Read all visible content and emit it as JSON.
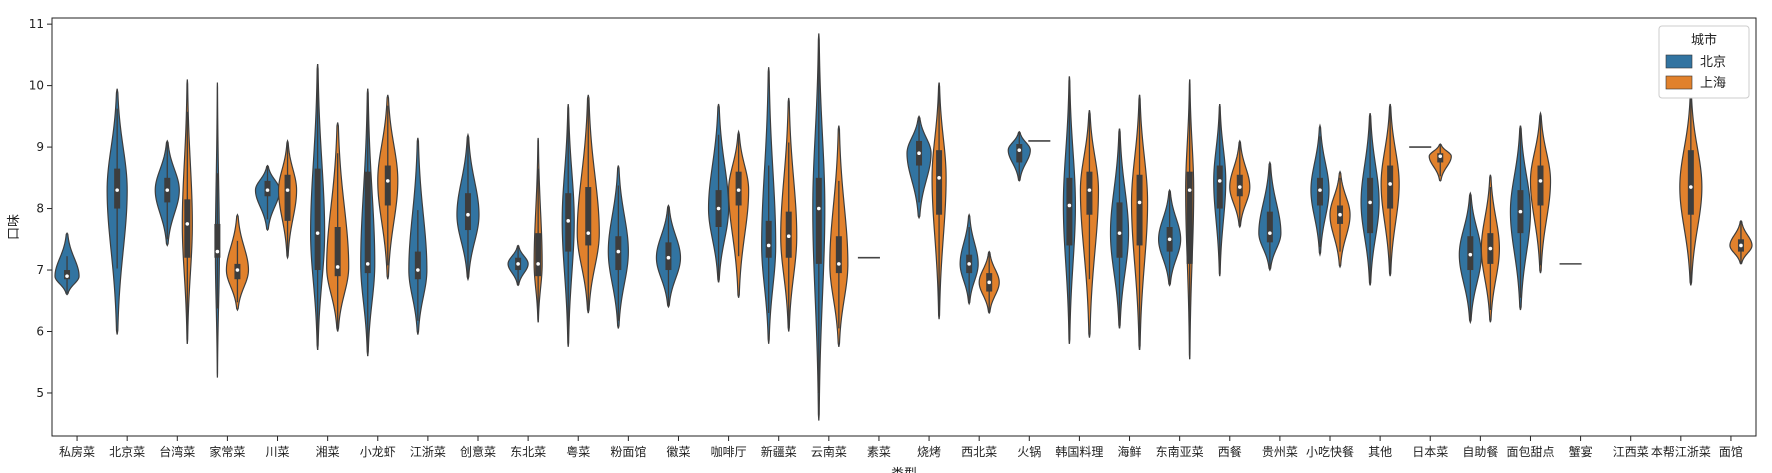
{
  "chart_data": {
    "type": "violin",
    "xlabel": "类型",
    "ylabel": "口味",
    "ylim": [
      4.3,
      11.1
    ],
    "yticks": [
      5,
      6,
      7,
      8,
      9,
      10,
      11
    ],
    "legend": {
      "title": "城市",
      "placement": "top-right",
      "entries": [
        "北京",
        "上海"
      ]
    },
    "colors": {
      "北京": "#3274a1",
      "上海": "#e1812c"
    },
    "categories": [
      "私房菜",
      "北京菜",
      "台湾菜",
      "家常菜",
      "川菜",
      "湘菜",
      "小龙虾",
      "江浙菜",
      "创意菜",
      "东北菜",
      "粤菜",
      "粉面馆",
      "徽菜",
      "咖啡厅",
      "新疆菜",
      "云南菜",
      "素菜",
      "烧烤",
      "西北菜",
      "火锅",
      "韩国料理",
      "海鲜",
      "东南亚菜",
      "西餐",
      "贵州菜",
      "小吃快餐",
      "其他",
      "日本菜",
      "自助餐",
      "面包甜点",
      "蟹宴",
      "江西菜",
      "本帮江浙菜",
      "面馆"
    ],
    "series": [
      {
        "name": "北京",
        "violins": [
          {
            "category": "私房菜",
            "min": 6.6,
            "max": 7.6,
            "median": 6.9,
            "q1": 6.85,
            "q3": 7.0,
            "width": 0.6
          },
          {
            "category": "北京菜",
            "min": 5.95,
            "max": 9.95,
            "median": 8.3,
            "q1": 8.0,
            "q3": 8.65,
            "width": 0.5
          },
          {
            "category": "台湾菜",
            "min": 7.4,
            "max": 9.1,
            "median": 8.3,
            "q1": 8.1,
            "q3": 8.5,
            "width": 0.6
          },
          {
            "category": "家常菜",
            "min": 5.25,
            "max": 10.05,
            "median": 7.3,
            "q1": 7.2,
            "q3": 7.75,
            "width": 0.1
          },
          {
            "category": "川菜",
            "min": 7.65,
            "max": 8.7,
            "median": 8.3,
            "q1": 8.2,
            "q3": 8.45,
            "width": 0.6
          },
          {
            "category": "湘菜",
            "min": 5.7,
            "max": 10.35,
            "median": 7.6,
            "q1": 7.0,
            "q3": 8.65,
            "width": 0.35
          },
          {
            "category": "小龙虾",
            "min": 5.6,
            "max": 9.95,
            "median": 7.1,
            "q1": 6.95,
            "q3": 8.6,
            "width": 0.35
          },
          {
            "category": "江浙菜",
            "min": 5.95,
            "max": 9.15,
            "median": 7.0,
            "q1": 6.85,
            "q3": 7.3,
            "width": 0.45
          },
          {
            "category": "创意菜",
            "min": 6.85,
            "max": 9.2,
            "median": 7.9,
            "q1": 7.65,
            "q3": 8.25,
            "width": 0.55
          },
          {
            "category": "东北菜",
            "min": 6.75,
            "max": 7.4,
            "median": 7.1,
            "q1": 7.0,
            "q3": 7.2,
            "width": 0.5
          },
          {
            "category": "粤菜",
            "min": 5.75,
            "max": 9.7,
            "median": 7.8,
            "q1": 7.3,
            "q3": 8.25,
            "width": 0.3
          },
          {
            "category": "粉面馆",
            "min": 6.05,
            "max": 8.7,
            "median": 7.3,
            "q1": 7.0,
            "q3": 7.55,
            "width": 0.5
          },
          {
            "category": "徽菜",
            "min": 6.4,
            "max": 8.05,
            "median": 7.2,
            "q1": 7.0,
            "q3": 7.45,
            "width": 0.6
          },
          {
            "category": "咖啡厅",
            "min": 6.8,
            "max": 9.7,
            "median": 8.0,
            "q1": 7.7,
            "q3": 8.3,
            "width": 0.5
          },
          {
            "category": "新疆菜",
            "min": 5.8,
            "max": 10.3,
            "median": 7.4,
            "q1": 7.2,
            "q3": 7.8,
            "width": 0.35
          },
          {
            "category": "云南菜",
            "min": 4.55,
            "max": 10.85,
            "median": 8.0,
            "q1": 7.1,
            "q3": 8.5,
            "width": 0.3
          },
          {
            "category": "素菜",
            "flat": 7.2
          },
          {
            "category": "烧烤",
            "min": 7.85,
            "max": 9.5,
            "median": 8.9,
            "q1": 8.7,
            "q3": 9.1,
            "width": 0.6
          },
          {
            "category": "西北菜",
            "min": 6.45,
            "max": 7.9,
            "median": 7.1,
            "q1": 6.95,
            "q3": 7.25,
            "width": 0.45
          },
          {
            "category": "火锅",
            "min": 8.45,
            "max": 9.25,
            "median": 8.95,
            "q1": 8.75,
            "q3": 9.05,
            "width": 0.55
          },
          {
            "category": "韩国料理",
            "min": 5.8,
            "max": 10.15,
            "median": 8.05,
            "q1": 7.4,
            "q3": 8.5,
            "width": 0.3
          },
          {
            "category": "海鲜",
            "min": 6.05,
            "max": 9.3,
            "median": 7.6,
            "q1": 7.2,
            "q3": 8.1,
            "width": 0.45
          },
          {
            "category": "东南亚菜",
            "min": 6.75,
            "max": 8.3,
            "median": 7.5,
            "q1": 7.3,
            "q3": 7.7,
            "width": 0.55
          },
          {
            "category": "西餐",
            "min": 6.9,
            "max": 9.7,
            "median": 8.45,
            "q1": 8.0,
            "q3": 8.7,
            "width": 0.3
          },
          {
            "category": "贵州菜",
            "min": 7.0,
            "max": 8.75,
            "median": 7.6,
            "q1": 7.45,
            "q3": 7.95,
            "width": 0.55
          },
          {
            "category": "小吃快餐",
            "min": 7.25,
            "max": 9.35,
            "median": 8.3,
            "q1": 8.05,
            "q3": 8.5,
            "width": 0.45
          },
          {
            "category": "其他",
            "min": 6.75,
            "max": 9.55,
            "median": 8.1,
            "q1": 7.6,
            "q3": 8.5,
            "width": 0.45
          },
          {
            "category": "日本菜",
            "flat": 9.0
          },
          {
            "category": "自助餐",
            "min": 6.15,
            "max": 8.25,
            "median": 7.25,
            "q1": 7.0,
            "q3": 7.55,
            "width": 0.55
          },
          {
            "category": "面包甜点",
            "min": 6.35,
            "max": 9.35,
            "median": 7.95,
            "q1": 7.6,
            "q3": 8.3,
            "width": 0.5
          },
          {
            "category": "蟹宴",
            "flat": 7.1
          }
        ]
      },
      {
        "name": "上海",
        "violins": [
          {
            "category": "台湾菜",
            "min": 5.8,
            "max": 10.1,
            "median": 7.75,
            "q1": 7.2,
            "q3": 8.15,
            "width": 0.25
          },
          {
            "category": "家常菜",
            "min": 6.35,
            "max": 7.9,
            "median": 7.0,
            "q1": 6.85,
            "q3": 7.1,
            "width": 0.55
          },
          {
            "category": "川菜",
            "min": 7.2,
            "max": 9.1,
            "median": 8.3,
            "q1": 7.8,
            "q3": 8.55,
            "width": 0.45
          },
          {
            "category": "湘菜",
            "min": 6.0,
            "max": 9.4,
            "median": 7.05,
            "q1": 6.9,
            "q3": 7.7,
            "width": 0.55
          },
          {
            "category": "小龙虾",
            "min": 6.85,
            "max": 9.85,
            "median": 8.45,
            "q1": 8.05,
            "q3": 8.7,
            "width": 0.5
          },
          {
            "category": "东北菜",
            "min": 6.15,
            "max": 9.15,
            "median": 7.1,
            "q1": 6.9,
            "q3": 7.6,
            "width": 0.2
          },
          {
            "category": "粤菜",
            "min": 6.3,
            "max": 9.85,
            "median": 7.6,
            "q1": 7.4,
            "q3": 8.35,
            "width": 0.55
          },
          {
            "category": "咖啡厅",
            "min": 6.55,
            "max": 9.25,
            "median": 8.3,
            "q1": 8.05,
            "q3": 8.6,
            "width": 0.5
          },
          {
            "category": "新疆菜",
            "min": 6.0,
            "max": 9.8,
            "median": 7.55,
            "q1": 7.2,
            "q3": 7.95,
            "width": 0.4
          },
          {
            "category": "云南菜",
            "min": 5.75,
            "max": 9.35,
            "median": 7.1,
            "q1": 6.95,
            "q3": 7.55,
            "width": 0.45
          },
          {
            "category": "烧烤",
            "min": 6.2,
            "max": 10.05,
            "median": 8.5,
            "q1": 7.9,
            "q3": 8.95,
            "width": 0.35
          },
          {
            "category": "西北菜",
            "min": 6.3,
            "max": 7.3,
            "median": 6.8,
            "q1": 6.65,
            "q3": 6.95,
            "width": 0.5
          },
          {
            "category": "火锅",
            "flat": 9.1
          },
          {
            "category": "韩国料理",
            "min": 5.9,
            "max": 9.6,
            "median": 8.3,
            "q1": 7.9,
            "q3": 8.6,
            "width": 0.45
          },
          {
            "category": "海鲜",
            "min": 5.7,
            "max": 9.85,
            "median": 8.1,
            "q1": 7.4,
            "q3": 8.55,
            "width": 0.4
          },
          {
            "category": "东南亚菜",
            "min": 5.55,
            "max": 10.1,
            "median": 8.3,
            "q1": 7.1,
            "q3": 8.6,
            "width": 0.2
          },
          {
            "category": "西餐",
            "min": 7.7,
            "max": 9.1,
            "median": 8.35,
            "q1": 8.2,
            "q3": 8.55,
            "width": 0.5
          },
          {
            "category": "小吃快餐",
            "min": 7.05,
            "max": 8.6,
            "median": 7.9,
            "q1": 7.75,
            "q3": 8.05,
            "width": 0.5
          },
          {
            "category": "其他",
            "min": 6.9,
            "max": 9.7,
            "median": 8.4,
            "q1": 8.0,
            "q3": 8.7,
            "width": 0.45
          },
          {
            "category": "日本菜",
            "min": 8.45,
            "max": 9.05,
            "median": 8.85,
            "q1": 8.75,
            "q3": 8.9,
            "width": 0.55
          },
          {
            "category": "自助餐",
            "min": 6.15,
            "max": 8.55,
            "median": 7.35,
            "q1": 7.1,
            "q3": 7.6,
            "width": 0.45
          },
          {
            "category": "面包甜点",
            "min": 6.95,
            "max": 9.55,
            "median": 8.45,
            "q1": 8.05,
            "q3": 8.7,
            "width": 0.5
          },
          {
            "category": "本帮江浙菜",
            "min": 6.75,
            "max": 9.85,
            "median": 8.35,
            "q1": 7.9,
            "q3": 8.95,
            "width": 0.55
          },
          {
            "category": "面馆",
            "min": 7.1,
            "max": 7.8,
            "median": 7.4,
            "q1": 7.3,
            "q3": 7.5,
            "width": 0.55
          }
        ]
      }
    ]
  }
}
